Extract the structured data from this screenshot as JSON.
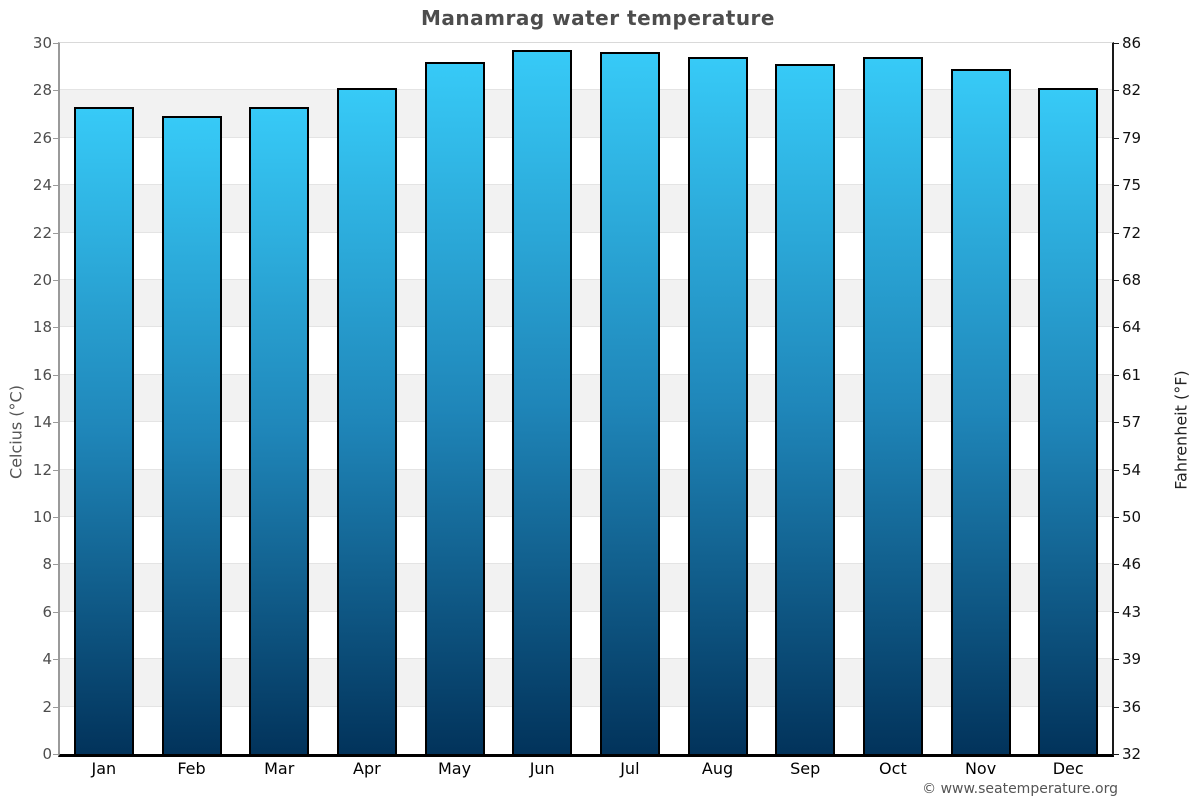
{
  "title": "Manamrag water temperature",
  "footer": "© www.seatemperature.org",
  "axes": {
    "left_label": "Celcius (°C)",
    "right_label": "Fahrenheit (°F)",
    "left_ticks_top_to_bottom": [
      30,
      28,
      26,
      24,
      22,
      20,
      18,
      16,
      14,
      12,
      10,
      8,
      6,
      4,
      2,
      0
    ],
    "right_ticks_top_to_bottom": [
      86,
      82,
      79,
      75,
      72,
      68,
      64,
      61,
      57,
      54,
      50,
      46,
      43,
      39,
      36,
      32
    ]
  },
  "colors": {
    "bar_gradient_top": "#37caf7",
    "bar_gradient_mid": "#1f86b9",
    "bar_gradient_bottom": "#02335b",
    "bar_border": "#000000",
    "band_gray": "#f2f2f2",
    "gridline": "#e4e4e4",
    "title_text": "#4d4d4d",
    "left_axis_line": "#9a9a9a",
    "right_axis_line": "#1a1a1a",
    "bottom_axis_line": "#000000"
  },
  "chart_data": {
    "type": "bar",
    "title": "Manamrag water temperature",
    "categories": [
      "Jan",
      "Feb",
      "Mar",
      "Apr",
      "May",
      "Jun",
      "Jul",
      "Aug",
      "Sep",
      "Oct",
      "Nov",
      "Dec"
    ],
    "values": [
      27.3,
      26.9,
      27.3,
      28.1,
      29.2,
      29.7,
      29.6,
      29.4,
      29.1,
      29.4,
      28.9,
      28.1
    ],
    "values_unit": "°C",
    "xlabel": "",
    "ylabel": "Celcius (°C)",
    "ylabel_secondary": "Fahrenheit (°F)",
    "ylim": [
      0,
      30
    ],
    "ylim_secondary": [
      32,
      86
    ],
    "y_tick_step": 2,
    "grid": "alternating-horizontal-bands",
    "legend": false,
    "band_count": 15
  }
}
